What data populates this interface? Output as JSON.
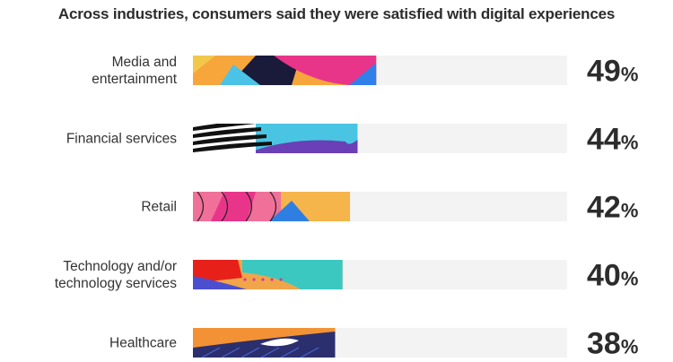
{
  "chart_data": {
    "type": "bar",
    "orientation": "horizontal",
    "title": "Across industries, consumers said they were satisfied with digital experiences",
    "categories": [
      [
        "Media and",
        "entertainment"
      ],
      [
        "Financial services"
      ],
      [
        "Retail"
      ],
      [
        "Technology and/or",
        "technology services"
      ],
      [
        "Healthcare"
      ]
    ],
    "values": [
      49,
      44,
      42,
      40,
      38
    ],
    "value_suffix": "%",
    "xlim": [
      0,
      100
    ],
    "grid": false,
    "legend": "none",
    "track_color": "#f3f3f3",
    "bar_palettes": [
      [
        "#f7a63c",
        "#1a1a3a",
        "#e8358a",
        "#2f80e8",
        "#4ac3e6",
        "#f2c84b"
      ],
      [
        "#111111",
        "#ffffff",
        "#49c5e3",
        "#6b3fb5"
      ],
      [
        "#f0709a",
        "#e8358a",
        "#f6b54b",
        "#2f7fe3",
        "#222222"
      ],
      [
        "#e8201a",
        "#f0a54a",
        "#3bc8c0",
        "#4b4fcf",
        "#d93a8f"
      ],
      [
        "#f39234",
        "#2b2f6e",
        "#ffffff",
        "#4a68d6"
      ]
    ]
  }
}
